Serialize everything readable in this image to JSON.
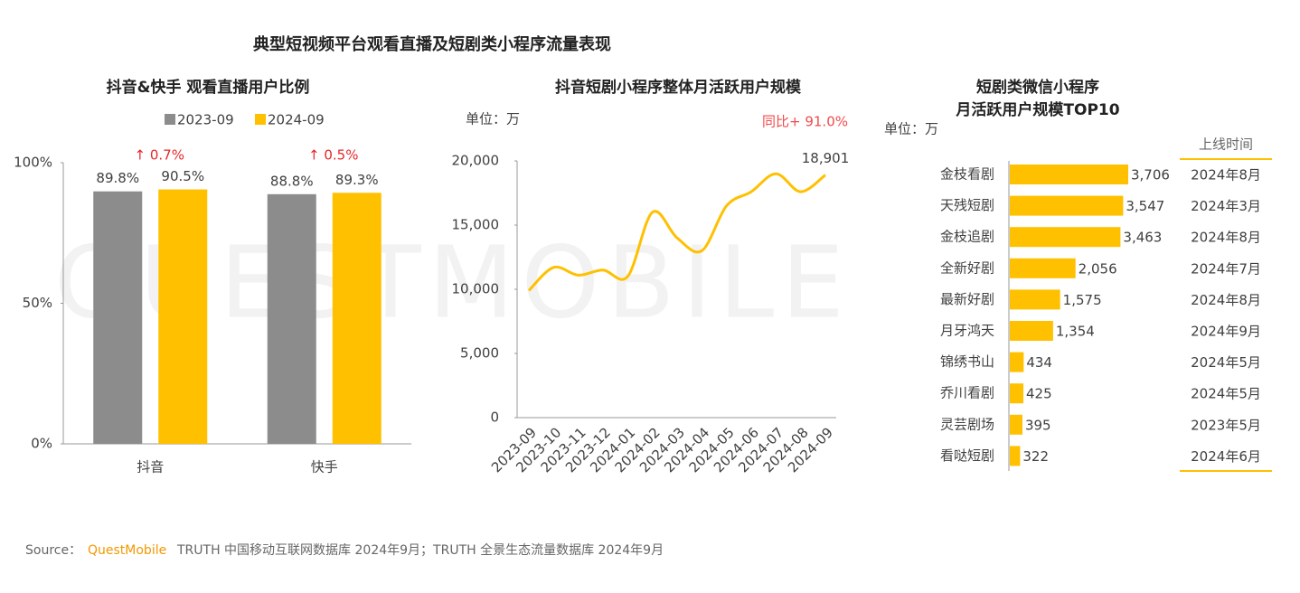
{
  "title": "典型短视频平台观看直播及短剧类小程序流量表现",
  "watermark": "QUESTMOBILE",
  "source": {
    "label": "Source：",
    "brand": "QuestMobile",
    "text": "TRUTH 中国移动互联网数据库 2024年9月；TRUTH 全景生态流量数据库 2024年9月"
  },
  "chart_data": [
    {
      "type": "bar",
      "title": "抖音&快手 观看直播用户比例",
      "categories": [
        "抖音",
        "快手"
      ],
      "series": [
        {
          "name": "2023-09",
          "color": "#8c8c8c",
          "values": [
            89.8,
            88.8
          ],
          "value_labels": [
            "89.8%",
            "88.8%"
          ]
        },
        {
          "name": "2024-09",
          "color": "#ffc000",
          "values": [
            90.5,
            89.3
          ],
          "value_labels": [
            "90.5%",
            "89.3%"
          ]
        }
      ],
      "annotations": [
        "↑ 0.7%",
        "↑ 0.5%"
      ],
      "ylim": [
        0,
        100
      ],
      "yticks": [
        {
          "value": 0,
          "label": "0%"
        },
        {
          "value": 50,
          "label": "50%"
        },
        {
          "value": 100,
          "label": "100%"
        }
      ]
    },
    {
      "type": "line",
      "title": "抖音短剧小程序整体月活跃用户规模",
      "unit": "单位：万",
      "annotation": "同比+ 91.0%",
      "categories": [
        "2023-09",
        "2023-10",
        "2023-11",
        "2023-12",
        "2024-01",
        "2024-02",
        "2024-03",
        "2024-04",
        "2024-05",
        "2024-06",
        "2024-07",
        "2024-08",
        "2024-09"
      ],
      "values": [
        9900,
        11700,
        11100,
        11500,
        11000,
        16000,
        14000,
        13000,
        16500,
        17600,
        19000,
        17600,
        18901
      ],
      "value_labels": [
        null,
        null,
        null,
        null,
        null,
        null,
        null,
        null,
        null,
        null,
        null,
        null,
        "18,901"
      ],
      "color": "#ffc000",
      "ylim": [
        0,
        20000
      ],
      "yticks": [
        0,
        {
          "value": 5000,
          "label": "5,000"
        },
        {
          "value": 10000,
          "label": "10,000"
        },
        {
          "value": 15000,
          "label": "15,000"
        },
        {
          "value": 20000,
          "label": "20,000"
        }
      ]
    },
    {
      "type": "hbar",
      "title": [
        "短剧类微信小程序",
        "月活跃用户规模TOP10"
      ],
      "unit": "单位：万",
      "categories": [
        "金枝看剧",
        "天残短剧",
        "金枝追剧",
        "全新好剧",
        "最新好剧",
        "月牙鸿天",
        "锦绣书山",
        "乔川看剧",
        "灵芸剧场",
        "看哒短剧"
      ],
      "values": [
        3706,
        3547,
        3463,
        2056,
        1575,
        1354,
        434,
        425,
        395,
        322
      ],
      "value_labels": [
        "3,706",
        "3,547",
        "3,463",
        "2,056",
        "1,575",
        "1,354",
        "434",
        "425",
        "395",
        "322"
      ],
      "color": "#ffc000",
      "launch_header": "上线时间",
      "launch_dates": [
        "2024年8月",
        "2024年3月",
        "2024年8月",
        "2024年7月",
        "2024年8月",
        "2024年9月",
        "2024年5月",
        "2024年5月",
        "2023年5月",
        "2024年6月"
      ]
    }
  ]
}
